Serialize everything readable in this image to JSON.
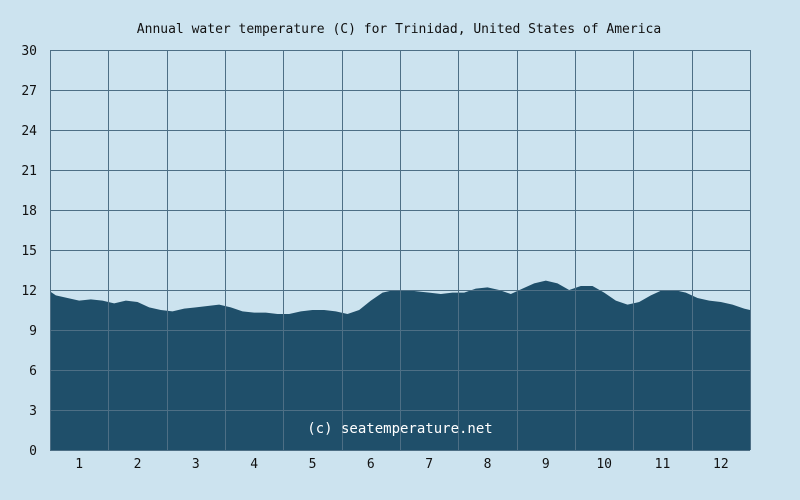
{
  "chart_data": {
    "type": "area",
    "title": "Annual water temperature (C) for Trinidad, United States of America",
    "xlabel": "",
    "ylabel": "",
    "ylim": [
      0,
      30
    ],
    "yticks": [
      "0",
      "3",
      "6",
      "9",
      "12",
      "15",
      "18",
      "21",
      "24",
      "27",
      "30"
    ],
    "xticks": [
      "1",
      "2",
      "3",
      "4",
      "5",
      "6",
      "7",
      "8",
      "9",
      "10",
      "11",
      "12"
    ],
    "xlim": [
      0.5,
      12.5
    ],
    "grid": true,
    "fill_color": "#1f4f6a",
    "background_color": "#cce3ef",
    "plot_background_color": "#cce3ef",
    "grid_color": "#4d6f85",
    "watermark": "(c) seatemperature.net",
    "series": [
      {
        "x": [
          0.5,
          0.6,
          0.8,
          1.0,
          1.2,
          1.4,
          1.6,
          1.8,
          2.0,
          2.2,
          2.4,
          2.6,
          2.8,
          3.0,
          3.2,
          3.4,
          3.6,
          3.8,
          4.0,
          4.2,
          4.4,
          4.6,
          4.8,
          5.0,
          5.2,
          5.4,
          5.6,
          5.8,
          6.0,
          6.2,
          6.4,
          6.6,
          6.8,
          7.0,
          7.2,
          7.4,
          7.6,
          7.8,
          8.0,
          8.2,
          8.4,
          8.6,
          8.8,
          9.0,
          9.2,
          9.4,
          9.6,
          9.8,
          10.0,
          10.2,
          10.4,
          10.6,
          10.8,
          11.0,
          11.2,
          11.4,
          11.6,
          11.8,
          12.0,
          12.2,
          12.4,
          12.5
        ],
        "values": [
          11.9,
          11.6,
          11.4,
          11.2,
          11.3,
          11.2,
          11.0,
          11.2,
          11.1,
          10.7,
          10.5,
          10.4,
          10.6,
          10.7,
          10.8,
          10.9,
          10.7,
          10.4,
          10.3,
          10.3,
          10.2,
          10.2,
          10.4,
          10.5,
          10.5,
          10.4,
          10.2,
          10.5,
          11.2,
          11.8,
          12.0,
          12.0,
          11.9,
          11.8,
          11.7,
          11.8,
          11.8,
          12.1,
          12.2,
          12.0,
          11.7,
          12.1,
          12.5,
          12.7,
          12.5,
          12.0,
          12.3,
          12.3,
          11.8,
          11.2,
          10.9,
          11.1,
          11.6,
          12.0,
          12.0,
          11.8,
          11.4,
          11.2,
          11.1,
          10.9,
          10.6,
          10.5
        ]
      }
    ]
  }
}
